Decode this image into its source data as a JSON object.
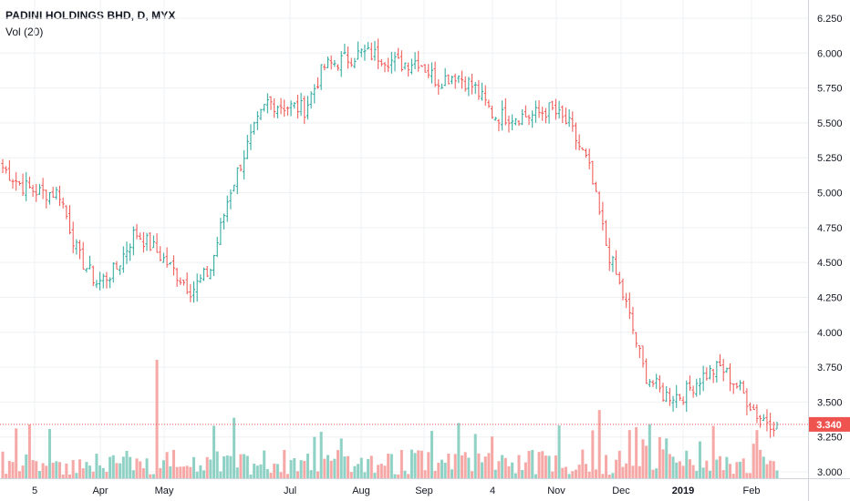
{
  "legend": {
    "title": "PADINI HOLDINGS BHD, D, MYX",
    "volume": "Vol (20)"
  },
  "colors": {
    "up": "#26a69a",
    "down": "#ef5350",
    "vol_up": "#8fd1c4",
    "vol_down": "#f6a8a6",
    "grid": "#eef0f3",
    "axis_text": "#131722",
    "last_price_bg": "#ef5350"
  },
  "chart_data": {
    "type": "ohlc",
    "title": "PADINI HOLDINGS BHD, D, MYX",
    "y_axis": {
      "position": "right",
      "range": [
        3.0,
        6.3
      ],
      "ticks": [
        "3.000",
        "3.250",
        "3.500",
        "3.750",
        "4.000",
        "4.250",
        "4.500",
        "4.750",
        "5.000",
        "5.250",
        "5.500",
        "5.750",
        "6.000",
        "6.250"
      ]
    },
    "x_axis": {
      "tick_labels": [
        "5",
        "Apr",
        "May",
        "Jul",
        "Aug",
        "Sep",
        "4",
        "Nov",
        "Dec",
        "2019",
        "Feb"
      ]
    },
    "last_price": {
      "value": 3.34,
      "label": "3.340"
    },
    "volume_indicator": "Vol (20)",
    "price_path": [
      [
        "5-",
        5.18
      ],
      [
        "5",
        5.05
      ],
      [
        "5+",
        5.0
      ],
      [
        "mid-Mar",
        5.0
      ],
      [
        "late-Mar",
        4.55
      ],
      [
        "Apr-",
        4.35
      ],
      [
        "Apr",
        4.45
      ],
      [
        "Apr+",
        4.72
      ],
      [
        "mid-Apr",
        4.6
      ],
      [
        "late-Apr",
        4.45
      ],
      [
        "May-",
        4.3
      ],
      [
        "May",
        4.45
      ],
      [
        "early-May",
        5.0
      ],
      [
        "mid-May",
        5.35
      ],
      [
        "late-May",
        5.65
      ],
      [
        "Jun",
        5.62
      ],
      [
        "late-Jun",
        5.6
      ],
      [
        "Jul",
        5.9
      ],
      [
        "mid-Jul",
        5.95
      ],
      [
        "Aug",
        6.0
      ],
      [
        "mid-Aug",
        5.98
      ],
      [
        "late-Aug",
        5.92
      ],
      [
        "Sep",
        5.95
      ],
      [
        "mid-Sep",
        5.8
      ],
      [
        "late-Sep",
        5.85
      ],
      [
        "4",
        5.75
      ],
      [
        "mid-Oct",
        5.55
      ],
      [
        "late-Oct",
        5.55
      ],
      [
        "Nov",
        5.55
      ],
      [
        "mid-Nov",
        5.6
      ],
      [
        "late-Nov",
        5.48
      ],
      [
        "Dec-",
        5.2
      ],
      [
        "Dec",
        4.6
      ],
      [
        "early-Dec",
        4.2
      ],
      [
        "mid-Dec",
        3.7
      ],
      [
        "late-Dec",
        3.55
      ],
      [
        "2019",
        3.55
      ],
      [
        "mid-Jan",
        3.68
      ],
      [
        "late-Jan",
        3.75
      ],
      [
        "Feb",
        3.6
      ],
      [
        "Feb+",
        3.4
      ],
      [
        "last",
        3.34
      ]
    ]
  }
}
